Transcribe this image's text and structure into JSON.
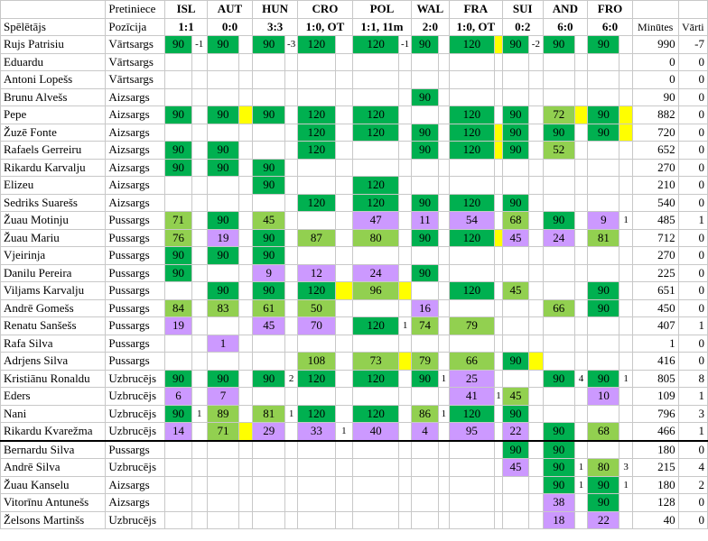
{
  "header": {
    "row1_label": "Pretiniece",
    "row2_player": "Spēlētājs",
    "row2_pos": "Pozīcija",
    "minutes": "Minūtes",
    "goals": "Vārti"
  },
  "matches": [
    {
      "opp": "ISL",
      "res": "1:1"
    },
    {
      "opp": "AUT",
      "res": "0:0"
    },
    {
      "opp": "HUN",
      "res": "3:3"
    },
    {
      "opp": "CRO",
      "res": "1:0, OT"
    },
    {
      "opp": "POL",
      "res": "1:1, 11m"
    },
    {
      "opp": "WAL",
      "res": "2:0"
    },
    {
      "opp": "FRA",
      "res": "1:0, OT"
    },
    {
      "opp": "SUI",
      "res": "0:2"
    },
    {
      "opp": "AND",
      "res": "6:0"
    },
    {
      "opp": "FRO",
      "res": "6:0"
    }
  ],
  "legend_colors": {
    "g": "#00b050",
    "l": "#92d050",
    "p": "#cc99ff",
    "y": "#ffff00"
  },
  "players": [
    {
      "name": "Rujs Patrisiu",
      "pos": "Vārtsargs",
      "min": "990",
      "goals": "-7",
      "m": [
        {
          "v": "90",
          "c": "g",
          "x": "-1"
        },
        {
          "v": "90",
          "c": "g"
        },
        {
          "v": "90",
          "c": "g",
          "x": "-3"
        },
        {
          "v": "120",
          "c": "g"
        },
        {
          "v": "120",
          "c": "g",
          "x": "-1"
        },
        {
          "v": "90",
          "c": "g"
        },
        {
          "v": "120",
          "c": "g",
          "y": true
        },
        {
          "v": "90",
          "c": "g",
          "x": "-2"
        },
        {
          "v": "90",
          "c": "g"
        },
        {
          "v": "90",
          "c": "g"
        }
      ]
    },
    {
      "name": "Eduardu",
      "pos": "Vārtsargs",
      "min": "0",
      "goals": "0",
      "m": [
        {},
        {},
        {},
        {},
        {},
        {},
        {},
        {},
        {},
        {}
      ]
    },
    {
      "name": "Antoni Lopešs",
      "pos": "Vārtsargs",
      "min": "0",
      "goals": "0",
      "m": [
        {},
        {},
        {},
        {},
        {},
        {},
        {},
        {},
        {},
        {}
      ]
    },
    {
      "name": "Brunu Alvešs",
      "pos": "Aizsargs",
      "min": "90",
      "goals": "0",
      "m": [
        {},
        {},
        {},
        {},
        {},
        {
          "v": "90",
          "c": "g"
        },
        {},
        {},
        {},
        {}
      ]
    },
    {
      "name": "Pepe",
      "pos": "Aizsargs",
      "min": "882",
      "goals": "0",
      "m": [
        {
          "v": "90",
          "c": "g"
        },
        {
          "v": "90",
          "c": "g",
          "y": true
        },
        {
          "v": "90",
          "c": "g"
        },
        {
          "v": "120",
          "c": "g"
        },
        {
          "v": "120",
          "c": "g"
        },
        {},
        {
          "v": "120",
          "c": "g"
        },
        {
          "v": "90",
          "c": "g"
        },
        {
          "v": "72",
          "c": "l",
          "y": true
        },
        {
          "v": "90",
          "c": "g",
          "y": true
        }
      ]
    },
    {
      "name": "Žuzē Fonte",
      "pos": "Aizsargs",
      "min": "720",
      "goals": "0",
      "m": [
        {},
        {},
        {},
        {
          "v": "120",
          "c": "g"
        },
        {
          "v": "120",
          "c": "g"
        },
        {
          "v": "90",
          "c": "g"
        },
        {
          "v": "120",
          "c": "g",
          "y": true
        },
        {
          "v": "90",
          "c": "g"
        },
        {
          "v": "90",
          "c": "g"
        },
        {
          "v": "90",
          "c": "g",
          "y": true
        }
      ]
    },
    {
      "name": "Rafaels Gerreiru",
      "pos": "Aizsargs",
      "min": "652",
      "goals": "0",
      "m": [
        {
          "v": "90",
          "c": "g"
        },
        {
          "v": "90",
          "c": "g"
        },
        {},
        {
          "v": "120",
          "c": "g"
        },
        {},
        {
          "v": "90",
          "c": "g"
        },
        {
          "v": "120",
          "c": "g",
          "y": true
        },
        {
          "v": "90",
          "c": "g"
        },
        {
          "v": "52",
          "c": "l"
        },
        {}
      ]
    },
    {
      "name": "Rikardu Karvalju",
      "pos": "Aizsargs",
      "min": "270",
      "goals": "0",
      "m": [
        {
          "v": "90",
          "c": "g"
        },
        {
          "v": "90",
          "c": "g"
        },
        {
          "v": "90",
          "c": "g"
        },
        {},
        {},
        {},
        {},
        {},
        {},
        {}
      ]
    },
    {
      "name": "Elizeu",
      "pos": "Aizsargs",
      "min": "210",
      "goals": "0",
      "m": [
        {},
        {},
        {
          "v": "90",
          "c": "g"
        },
        {},
        {
          "v": "120",
          "c": "g"
        },
        {},
        {},
        {},
        {},
        {}
      ]
    },
    {
      "name": "Sedriks Suarešs",
      "pos": "Aizsargs",
      "min": "540",
      "goals": "0",
      "m": [
        {},
        {},
        {},
        {
          "v": "120",
          "c": "g"
        },
        {
          "v": "120",
          "c": "g"
        },
        {
          "v": "90",
          "c": "g"
        },
        {
          "v": "120",
          "c": "g"
        },
        {
          "v": "90",
          "c": "g"
        },
        {},
        {}
      ]
    },
    {
      "name": "Žuau Motinju",
      "pos": "Pussargs",
      "min": "485",
      "goals": "1",
      "m": [
        {
          "v": "71",
          "c": "l"
        },
        {
          "v": "90",
          "c": "g"
        },
        {
          "v": "45",
          "c": "l"
        },
        {},
        {
          "v": "47",
          "c": "p"
        },
        {
          "v": "11",
          "c": "p"
        },
        {
          "v": "54",
          "c": "p"
        },
        {
          "v": "68",
          "c": "l"
        },
        {
          "v": "90",
          "c": "g"
        },
        {
          "v": "9",
          "c": "p",
          "x": "1"
        }
      ]
    },
    {
      "name": "Žuau Mariu",
      "pos": "Pussargs",
      "min": "712",
      "goals": "0",
      "m": [
        {
          "v": "76",
          "c": "l"
        },
        {
          "v": "19",
          "c": "p"
        },
        {
          "v": "90",
          "c": "g"
        },
        {
          "v": "87",
          "c": "l"
        },
        {
          "v": "80",
          "c": "l"
        },
        {
          "v": "90",
          "c": "g"
        },
        {
          "v": "120",
          "c": "g",
          "y": true
        },
        {
          "v": "45",
          "c": "p"
        },
        {
          "v": "24",
          "c": "p"
        },
        {
          "v": "81",
          "c": "l"
        }
      ]
    },
    {
      "name": "Vjeirinja",
      "pos": "Pussargs",
      "min": "270",
      "goals": "0",
      "m": [
        {
          "v": "90",
          "c": "g"
        },
        {
          "v": "90",
          "c": "g"
        },
        {
          "v": "90",
          "c": "g"
        },
        {},
        {},
        {},
        {},
        {},
        {},
        {}
      ]
    },
    {
      "name": "Danilu Pereira",
      "pos": "Pussargs",
      "min": "225",
      "goals": "0",
      "m": [
        {
          "v": "90",
          "c": "g"
        },
        {},
        {
          "v": "9",
          "c": "p"
        },
        {
          "v": "12",
          "c": "p"
        },
        {
          "v": "24",
          "c": "p"
        },
        {
          "v": "90",
          "c": "g"
        },
        {},
        {},
        {},
        {}
      ]
    },
    {
      "name": "Viljams Karvalju",
      "pos": "Pussargs",
      "min": "651",
      "goals": "0",
      "m": [
        {},
        {
          "v": "90",
          "c": "g"
        },
        {
          "v": "90",
          "c": "g"
        },
        {
          "v": "120",
          "c": "g",
          "y": true
        },
        {
          "v": "96",
          "c": "l",
          "y": true
        },
        {},
        {
          "v": "120",
          "c": "g"
        },
        {
          "v": "45",
          "c": "l"
        },
        {},
        {
          "v": "90",
          "c": "g"
        }
      ]
    },
    {
      "name": "Andrē Gomešs",
      "pos": "Pussargs",
      "min": "450",
      "goals": "0",
      "m": [
        {
          "v": "84",
          "c": "l"
        },
        {
          "v": "83",
          "c": "l"
        },
        {
          "v": "61",
          "c": "l"
        },
        {
          "v": "50",
          "c": "l"
        },
        {},
        {
          "v": "16",
          "c": "p"
        },
        {},
        {},
        {
          "v": "66",
          "c": "l"
        },
        {
          "v": "90",
          "c": "g"
        }
      ]
    },
    {
      "name": "Renatu Sanšešs",
      "pos": "Pussargs",
      "min": "407",
      "goals": "1",
      "m": [
        {
          "v": "19",
          "c": "p"
        },
        {},
        {
          "v": "45",
          "c": "p"
        },
        {
          "v": "70",
          "c": "p"
        },
        {
          "v": "120",
          "c": "g",
          "x": "1"
        },
        {
          "v": "74",
          "c": "l"
        },
        {
          "v": "79",
          "c": "l"
        },
        {},
        {},
        {}
      ]
    },
    {
      "name": "Rafa Silva",
      "pos": "Pussargs",
      "min": "1",
      "goals": "0",
      "m": [
        {},
        {
          "v": "1",
          "c": "p"
        },
        {},
        {},
        {},
        {},
        {},
        {},
        {},
        {}
      ]
    },
    {
      "name": "Adrjens Silva",
      "pos": "Pussargs",
      "min": "416",
      "goals": "0",
      "m": [
        {},
        {},
        {},
        {
          "v": "108",
          "c": "l"
        },
        {
          "v": "73",
          "c": "l",
          "y": true
        },
        {
          "v": "79",
          "c": "l"
        },
        {
          "v": "66",
          "c": "l"
        },
        {
          "v": "90",
          "c": "g",
          "y": true
        },
        {},
        {}
      ]
    },
    {
      "name": "Kristiānu Ronaldu",
      "pos": "Uzbrucējs",
      "min": "805",
      "goals": "8",
      "m": [
        {
          "v": "90",
          "c": "g"
        },
        {
          "v": "90",
          "c": "g"
        },
        {
          "v": "90",
          "c": "g",
          "x": "2"
        },
        {
          "v": "120",
          "c": "g"
        },
        {
          "v": "120",
          "c": "g"
        },
        {
          "v": "90",
          "c": "g",
          "x": "1"
        },
        {
          "v": "25",
          "c": "p"
        },
        {},
        {
          "v": "90",
          "c": "g",
          "x": "4"
        },
        {
          "v": "90",
          "c": "g",
          "x": "1"
        }
      ]
    },
    {
      "name": "Eders",
      "pos": "Uzbrucējs",
      "min": "109",
      "goals": "1",
      "m": [
        {
          "v": "6",
          "c": "p"
        },
        {
          "v": "7",
          "c": "p"
        },
        {},
        {},
        {},
        {},
        {
          "v": "41",
          "c": "p",
          "x": "1"
        },
        {
          "v": "45",
          "c": "l"
        },
        {},
        {
          "v": "10",
          "c": "p"
        }
      ]
    },
    {
      "name": "Nani",
      "pos": "Uzbrucējs",
      "min": "796",
      "goals": "3",
      "m": [
        {
          "v": "90",
          "c": "g",
          "x": "1"
        },
        {
          "v": "89",
          "c": "l"
        },
        {
          "v": "81",
          "c": "l",
          "x": "1"
        },
        {
          "v": "120",
          "c": "g"
        },
        {
          "v": "120",
          "c": "g"
        },
        {
          "v": "86",
          "c": "l",
          "x": "1"
        },
        {
          "v": "120",
          "c": "g"
        },
        {
          "v": "90",
          "c": "g"
        },
        {},
        {}
      ]
    },
    {
      "name": "Rikardu Kvarežma",
      "pos": "Uzbrucējs",
      "min": "466",
      "goals": "1",
      "m": [
        {
          "v": "14",
          "c": "p"
        },
        {
          "v": "71",
          "c": "l",
          "y": true
        },
        {
          "v": "29",
          "c": "p"
        },
        {
          "v": "33",
          "c": "p",
          "x": "1"
        },
        {
          "v": "40",
          "c": "p"
        },
        {
          "v": "4",
          "c": "p"
        },
        {
          "v": "95",
          "c": "p"
        },
        {
          "v": "22",
          "c": "p"
        },
        {
          "v": "90",
          "c": "g"
        },
        {
          "v": "68",
          "c": "l"
        }
      ]
    },
    {
      "name": "Bernardu Silva",
      "pos": "Pussargs",
      "min": "180",
      "goals": "0",
      "sep": true,
      "m": [
        {},
        {},
        {},
        {},
        {},
        {},
        {},
        {
          "v": "90",
          "c": "g"
        },
        {
          "v": "90",
          "c": "g"
        },
        {}
      ]
    },
    {
      "name": "Andrē Silva",
      "pos": "Uzbrucējs",
      "min": "215",
      "goals": "4",
      "m": [
        {},
        {},
        {},
        {},
        {},
        {},
        {},
        {
          "v": "45",
          "c": "p"
        },
        {
          "v": "90",
          "c": "g",
          "x": "1"
        },
        {
          "v": "80",
          "c": "l",
          "x": "3"
        }
      ]
    },
    {
      "name": "Žuau Kanselu",
      "pos": "Aizsargs",
      "min": "180",
      "goals": "2",
      "m": [
        {},
        {},
        {},
        {},
        {},
        {},
        {},
        {},
        {
          "v": "90",
          "c": "g",
          "x": "1"
        },
        {
          "v": "90",
          "c": "g",
          "x": "1"
        }
      ]
    },
    {
      "name": "Vitorīnu Antunešs",
      "pos": "Aizsargs",
      "min": "128",
      "goals": "0",
      "m": [
        {},
        {},
        {},
        {},
        {},
        {},
        {},
        {},
        {
          "v": "38",
          "c": "p"
        },
        {
          "v": "90",
          "c": "g"
        }
      ]
    },
    {
      "name": "Želsons Martinšs",
      "pos": "Uzbrucējs",
      "min": "40",
      "goals": "0",
      "m": [
        {},
        {},
        {},
        {},
        {},
        {},
        {},
        {},
        {
          "v": "18",
          "c": "p"
        },
        {
          "v": "22",
          "c": "p"
        }
      ]
    }
  ]
}
